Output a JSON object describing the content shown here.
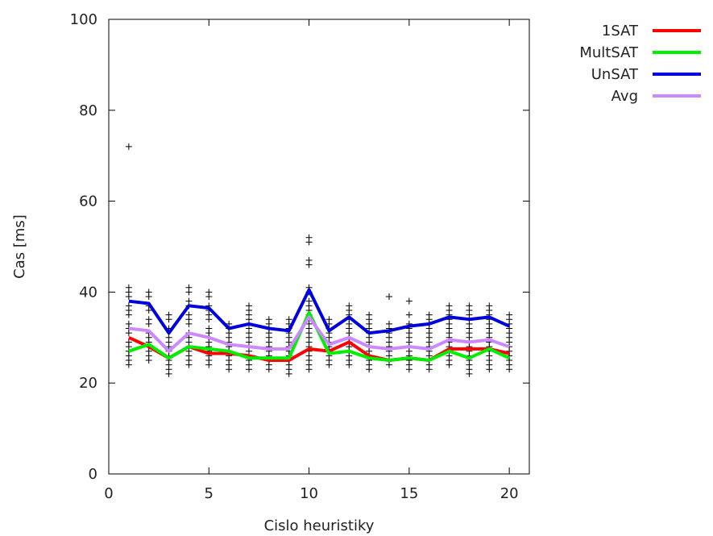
{
  "chart_data": {
    "type": "line",
    "title": "",
    "xlabel": "Cislo heuristiky",
    "ylabel": "Cas [ms]",
    "xlim": [
      0,
      21
    ],
    "ylim": [
      0,
      100
    ],
    "xticks": [
      0,
      5,
      10,
      15,
      20
    ],
    "yticks": [
      0,
      20,
      40,
      60,
      80,
      100
    ],
    "grid": false,
    "legend_position": "top-right, outside plot",
    "x": [
      1,
      2,
      3,
      4,
      5,
      6,
      7,
      8,
      9,
      10,
      11,
      12,
      13,
      14,
      15,
      16,
      17,
      18,
      19,
      20
    ],
    "series": [
      {
        "name": "1SAT",
        "color": "#ff0000",
        "values": [
          30,
          28,
          25.5,
          28,
          26.5,
          26.5,
          26,
          25,
          25,
          27.5,
          27,
          29,
          26,
          25,
          25.5,
          25,
          27.5,
          27.5,
          27.5,
          26.5
        ]
      },
      {
        "name": "MultSAT",
        "color": "#00ee00",
        "values": [
          27,
          28.5,
          25.5,
          28,
          27.5,
          27,
          25.5,
          25.5,
          25.5,
          35.5,
          26.5,
          27,
          25.5,
          25,
          25.5,
          25,
          27,
          25.5,
          27.5,
          25.5
        ]
      },
      {
        "name": "UnSAT",
        "color": "#0000dd",
        "values": [
          38,
          37.5,
          31,
          37,
          36.5,
          32,
          33,
          32,
          31.5,
          40.5,
          31.5,
          34.5,
          31,
          31.5,
          32.5,
          33,
          34.5,
          34,
          34.5,
          32.5
        ]
      },
      {
        "name": "Avg",
        "color": "#cc88ff",
        "values": [
          32,
          31.5,
          27,
          31,
          30,
          28.5,
          28,
          27.5,
          27.5,
          34.5,
          28.5,
          30,
          28,
          27.5,
          28,
          27.5,
          29.5,
          29,
          29.5,
          28
        ]
      }
    ],
    "samples": {
      "marker": "+",
      "color": "#000000",
      "points": [
        [
          1,
          72
        ],
        [
          1,
          41
        ],
        [
          1,
          40
        ],
        [
          1,
          39
        ],
        [
          1,
          37
        ],
        [
          1,
          36
        ],
        [
          1,
          35
        ],
        [
          1,
          33
        ],
        [
          1,
          32
        ],
        [
          1,
          31
        ],
        [
          1,
          29
        ],
        [
          1,
          28
        ],
        [
          1,
          27
        ],
        [
          1,
          26
        ],
        [
          1,
          25
        ],
        [
          1,
          24
        ],
        [
          2,
          40
        ],
        [
          2,
          39
        ],
        [
          2,
          37
        ],
        [
          2,
          36
        ],
        [
          2,
          34
        ],
        [
          2,
          33
        ],
        [
          2,
          31
        ],
        [
          2,
          30
        ],
        [
          2,
          29
        ],
        [
          2,
          28
        ],
        [
          2,
          27
        ],
        [
          2,
          26
        ],
        [
          2,
          25
        ],
        [
          3,
          35
        ],
        [
          3,
          34
        ],
        [
          3,
          32
        ],
        [
          3,
          30
        ],
        [
          3,
          29
        ],
        [
          3,
          28
        ],
        [
          3,
          27
        ],
        [
          3,
          26
        ],
        [
          3,
          25
        ],
        [
          3,
          24
        ],
        [
          3,
          23
        ],
        [
          3,
          22
        ],
        [
          4,
          41
        ],
        [
          4,
          40
        ],
        [
          4,
          38
        ],
        [
          4,
          37
        ],
        [
          4,
          35
        ],
        [
          4,
          34
        ],
        [
          4,
          33
        ],
        [
          4,
          31
        ],
        [
          4,
          30
        ],
        [
          4,
          29
        ],
        [
          4,
          28
        ],
        [
          4,
          27
        ],
        [
          4,
          26
        ],
        [
          4,
          25
        ],
        [
          4,
          24
        ],
        [
          5,
          40
        ],
        [
          5,
          39
        ],
        [
          5,
          37
        ],
        [
          5,
          36
        ],
        [
          5,
          35
        ],
        [
          5,
          34
        ],
        [
          5,
          32
        ],
        [
          5,
          31
        ],
        [
          5,
          30
        ],
        [
          5,
          29
        ],
        [
          5,
          28
        ],
        [
          5,
          27
        ],
        [
          5,
          26
        ],
        [
          5,
          25
        ],
        [
          5,
          24
        ],
        [
          6,
          33
        ],
        [
          6,
          32
        ],
        [
          6,
          31
        ],
        [
          6,
          30
        ],
        [
          6,
          29
        ],
        [
          6,
          28
        ],
        [
          6,
          27
        ],
        [
          6,
          26
        ],
        [
          6,
          25
        ],
        [
          6,
          24
        ],
        [
          6,
          23
        ],
        [
          7,
          37
        ],
        [
          7,
          36
        ],
        [
          7,
          35
        ],
        [
          7,
          34
        ],
        [
          7,
          33
        ],
        [
          7,
          32
        ],
        [
          7,
          31
        ],
        [
          7,
          30
        ],
        [
          7,
          29
        ],
        [
          7,
          28
        ],
        [
          7,
          27
        ],
        [
          7,
          26
        ],
        [
          7,
          25
        ],
        [
          7,
          24
        ],
        [
          7,
          23
        ],
        [
          8,
          34
        ],
        [
          8,
          33
        ],
        [
          8,
          32
        ],
        [
          8,
          31
        ],
        [
          8,
          30
        ],
        [
          8,
          29
        ],
        [
          8,
          28
        ],
        [
          8,
          27
        ],
        [
          8,
          26
        ],
        [
          8,
          25
        ],
        [
          8,
          24
        ],
        [
          8,
          23
        ],
        [
          9,
          34
        ],
        [
          9,
          33
        ],
        [
          9,
          32
        ],
        [
          9,
          31
        ],
        [
          9,
          30
        ],
        [
          9,
          29
        ],
        [
          9,
          28
        ],
        [
          9,
          27
        ],
        [
          9,
          26
        ],
        [
          9,
          25
        ],
        [
          9,
          24
        ],
        [
          9,
          23
        ],
        [
          9,
          22
        ],
        [
          10,
          52
        ],
        [
          10,
          51
        ],
        [
          10,
          47
        ],
        [
          10,
          46
        ],
        [
          10,
          41
        ],
        [
          10,
          40
        ],
        [
          10,
          38
        ],
        [
          10,
          37
        ],
        [
          10,
          36
        ],
        [
          10,
          35
        ],
        [
          10,
          34
        ],
        [
          10,
          33
        ],
        [
          10,
          32
        ],
        [
          10,
          31
        ],
        [
          10,
          30
        ],
        [
          10,
          29
        ],
        [
          10,
          28
        ],
        [
          10,
          27
        ],
        [
          10,
          26
        ],
        [
          10,
          25
        ],
        [
          10,
          24
        ],
        [
          10,
          23
        ],
        [
          11,
          34
        ],
        [
          11,
          33
        ],
        [
          11,
          32
        ],
        [
          11,
          31
        ],
        [
          11,
          30
        ],
        [
          11,
          29
        ],
        [
          11,
          28
        ],
        [
          11,
          27
        ],
        [
          11,
          26
        ],
        [
          11,
          25
        ],
        [
          11,
          24
        ],
        [
          12,
          37
        ],
        [
          12,
          36
        ],
        [
          12,
          35
        ],
        [
          12,
          34
        ],
        [
          12,
          33
        ],
        [
          12,
          32
        ],
        [
          12,
          31
        ],
        [
          12,
          30
        ],
        [
          12,
          29
        ],
        [
          12,
          28
        ],
        [
          12,
          27
        ],
        [
          12,
          26
        ],
        [
          12,
          25
        ],
        [
          12,
          24
        ],
        [
          13,
          35
        ],
        [
          13,
          34
        ],
        [
          13,
          33
        ],
        [
          13,
          32
        ],
        [
          13,
          31
        ],
        [
          13,
          30
        ],
        [
          13,
          29
        ],
        [
          13,
          28
        ],
        [
          13,
          27
        ],
        [
          13,
          26
        ],
        [
          13,
          25
        ],
        [
          13,
          24
        ],
        [
          13,
          23
        ],
        [
          14,
          39
        ],
        [
          14,
          33
        ],
        [
          14,
          32
        ],
        [
          14,
          31
        ],
        [
          14,
          30
        ],
        [
          14,
          29
        ],
        [
          14,
          28
        ],
        [
          14,
          27
        ],
        [
          14,
          26
        ],
        [
          14,
          25
        ],
        [
          14,
          24
        ],
        [
          15,
          38
        ],
        [
          15,
          35
        ],
        [
          15,
          33
        ],
        [
          15,
          32
        ],
        [
          15,
          31
        ],
        [
          15,
          30
        ],
        [
          15,
          29
        ],
        [
          15,
          28
        ],
        [
          15,
          27
        ],
        [
          15,
          26
        ],
        [
          15,
          25
        ],
        [
          15,
          24
        ],
        [
          15,
          23
        ],
        [
          16,
          35
        ],
        [
          16,
          34
        ],
        [
          16,
          33
        ],
        [
          16,
          32
        ],
        [
          16,
          31
        ],
        [
          16,
          30
        ],
        [
          16,
          29
        ],
        [
          16,
          28
        ],
        [
          16,
          27
        ],
        [
          16,
          26
        ],
        [
          16,
          25
        ],
        [
          16,
          24
        ],
        [
          16,
          23
        ],
        [
          17,
          37
        ],
        [
          17,
          36
        ],
        [
          17,
          35
        ],
        [
          17,
          34
        ],
        [
          17,
          33
        ],
        [
          17,
          32
        ],
        [
          17,
          31
        ],
        [
          17,
          30
        ],
        [
          17,
          29
        ],
        [
          17,
          28
        ],
        [
          17,
          27
        ],
        [
          17,
          26
        ],
        [
          17,
          25
        ],
        [
          17,
          24
        ],
        [
          18,
          37
        ],
        [
          18,
          36
        ],
        [
          18,
          35
        ],
        [
          18,
          34
        ],
        [
          18,
          33
        ],
        [
          18,
          32
        ],
        [
          18,
          31
        ],
        [
          18,
          30
        ],
        [
          18,
          29
        ],
        [
          18,
          28
        ],
        [
          18,
          27
        ],
        [
          18,
          26
        ],
        [
          18,
          25
        ],
        [
          18,
          24
        ],
        [
          18,
          23
        ],
        [
          18,
          22
        ],
        [
          19,
          37
        ],
        [
          19,
          36
        ],
        [
          19,
          35
        ],
        [
          19,
          34
        ],
        [
          19,
          33
        ],
        [
          19,
          32
        ],
        [
          19,
          31
        ],
        [
          19,
          30
        ],
        [
          19,
          29
        ],
        [
          19,
          28
        ],
        [
          19,
          27
        ],
        [
          19,
          26
        ],
        [
          19,
          25
        ],
        [
          19,
          24
        ],
        [
          19,
          23
        ],
        [
          20,
          35
        ],
        [
          20,
          34
        ],
        [
          20,
          33
        ],
        [
          20,
          32
        ],
        [
          20,
          31
        ],
        [
          20,
          30
        ],
        [
          20,
          29
        ],
        [
          20,
          28
        ],
        [
          20,
          27
        ],
        [
          20,
          26
        ],
        [
          20,
          25
        ],
        [
          20,
          24
        ],
        [
          20,
          23
        ]
      ]
    }
  }
}
